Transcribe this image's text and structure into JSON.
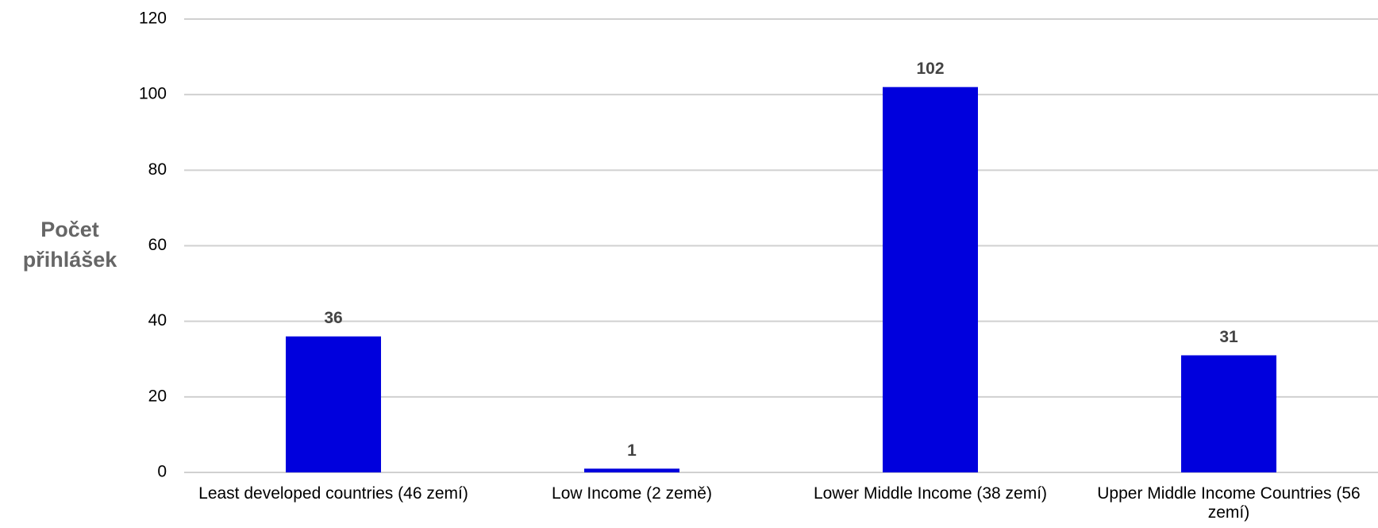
{
  "chart_data": {
    "type": "bar",
    "y_label": "Počet přihlášek",
    "categories": [
      "Least developed countries (46 zemí)",
      "Low Income (2 země)",
      "Lower Middle Income (38 zemí)",
      "Upper Middle Income Countries (56 zemí)"
    ],
    "values": [
      36,
      1,
      102,
      31
    ],
    "color": "#0000dd",
    "ylim": [
      0,
      120
    ],
    "yticks": [
      0,
      20,
      40,
      60,
      80,
      100,
      120
    ],
    "grid": true
  }
}
